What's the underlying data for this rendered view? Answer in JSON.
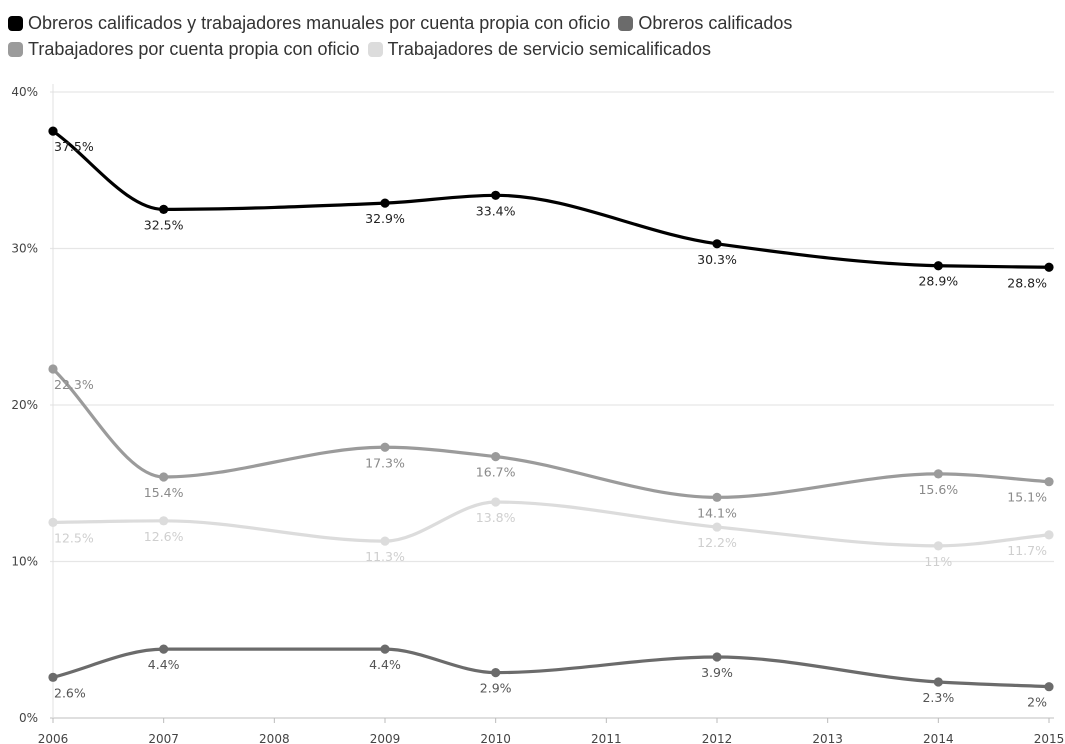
{
  "chart_data": {
    "type": "line",
    "title": "",
    "xlabel": "",
    "ylabel": "",
    "x": [
      2006,
      2007,
      2008,
      2009,
      2010,
      2011,
      2012,
      2013,
      2014,
      2015
    ],
    "x_tick_labels": [
      "2006",
      "2007",
      "2008",
      "2009",
      "2010",
      "2011",
      "2012",
      "2013",
      "2014",
      "2015"
    ],
    "ylim": [
      0,
      40
    ],
    "y_ticks": [
      0,
      10,
      20,
      30,
      40
    ],
    "y_tick_labels": [
      "0%",
      "10%",
      "20%",
      "30%",
      "40%"
    ],
    "grid": true,
    "legend_position": "top-left",
    "series": [
      {
        "name": "Obreros calificados y trabajadores manuales por cuenta propia con oficio",
        "color": "#000000",
        "label_color": "#222222",
        "points": [
          {
            "x": 2006,
            "y": 37.5,
            "label": "37.5%"
          },
          {
            "x": 2007,
            "y": 32.5,
            "label": "32.5%"
          },
          {
            "x": 2009,
            "y": 32.9,
            "label": "32.9%"
          },
          {
            "x": 2010,
            "y": 33.4,
            "label": "33.4%"
          },
          {
            "x": 2012,
            "y": 30.3,
            "label": "30.3%"
          },
          {
            "x": 2014,
            "y": 28.9,
            "label": "28.9%"
          },
          {
            "x": 2015,
            "y": 28.8,
            "label": "28.8%"
          }
        ]
      },
      {
        "name": "Obreros calificados",
        "color": "#6b6b6b",
        "label_color": "#555555",
        "points": [
          {
            "x": 2006,
            "y": 2.6,
            "label": "2.6%"
          },
          {
            "x": 2007,
            "y": 4.4,
            "label": "4.4%"
          },
          {
            "x": 2009,
            "y": 4.4,
            "label": "4.4%"
          },
          {
            "x": 2010,
            "y": 2.9,
            "label": "2.9%"
          },
          {
            "x": 2012,
            "y": 3.9,
            "label": "3.9%"
          },
          {
            "x": 2014,
            "y": 2.3,
            "label": "2.3%"
          },
          {
            "x": 2015,
            "y": 2.0,
            "label": "2%"
          }
        ]
      },
      {
        "name": "Trabajadores por cuenta propia con oficio",
        "color": "#9b9b9b",
        "label_color": "#8a8a8a",
        "points": [
          {
            "x": 2006,
            "y": 22.3,
            "label": "22.3%"
          },
          {
            "x": 2007,
            "y": 15.4,
            "label": "15.4%"
          },
          {
            "x": 2009,
            "y": 17.3,
            "label": "17.3%"
          },
          {
            "x": 2010,
            "y": 16.7,
            "label": "16.7%"
          },
          {
            "x": 2012,
            "y": 14.1,
            "label": "14.1%"
          },
          {
            "x": 2014,
            "y": 15.6,
            "label": "15.6%"
          },
          {
            "x": 2015,
            "y": 15.1,
            "label": "15.1%"
          }
        ]
      },
      {
        "name": "Trabajadores de servicio semicalificados",
        "color": "#dcdcdc",
        "label_color": "#cfcfcf",
        "points": [
          {
            "x": 2006,
            "y": 12.5,
            "label": "12.5%"
          },
          {
            "x": 2007,
            "y": 12.6,
            "label": "12.6%"
          },
          {
            "x": 2009,
            "y": 11.3,
            "label": "11.3%"
          },
          {
            "x": 2010,
            "y": 13.8,
            "label": "13.8%"
          },
          {
            "x": 2012,
            "y": 12.2,
            "label": "12.2%"
          },
          {
            "x": 2014,
            "y": 11.0,
            "label": "11%"
          },
          {
            "x": 2015,
            "y": 11.7,
            "label": "11.7%"
          }
        ]
      }
    ]
  }
}
